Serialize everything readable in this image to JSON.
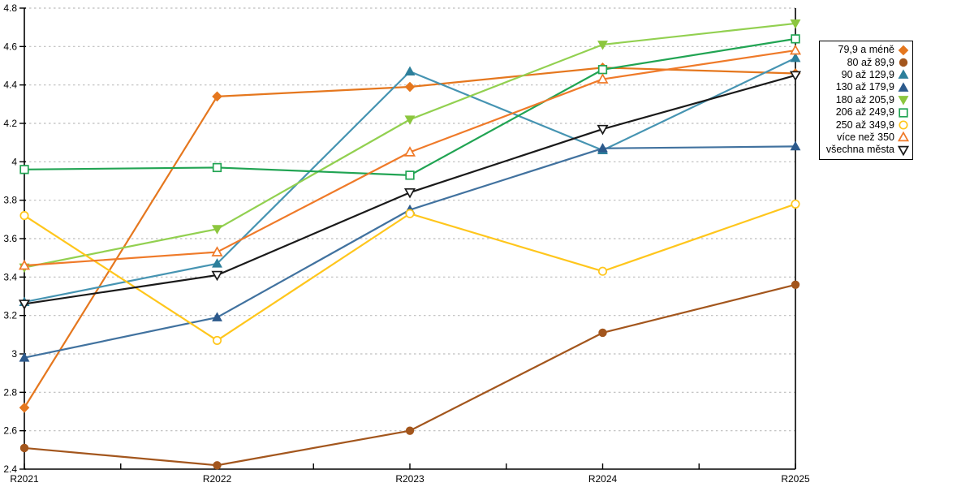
{
  "chart_data": {
    "type": "line",
    "title": "",
    "xlabel": "",
    "ylabel": "",
    "categories": [
      "R2021",
      "R2022",
      "R2023",
      "R2024",
      "R2025"
    ],
    "ylim": [
      2.4,
      4.8
    ],
    "ytick_step": 0.2,
    "ytick_labels": [
      "2.4",
      "2.6",
      "2.8",
      "3",
      "3.2",
      "3.4",
      "3.6",
      "3.8",
      "4",
      "4.2",
      "4.4",
      "4.6",
      "4.8"
    ],
    "grid": "horizontal-dashed",
    "legend_position": "right",
    "series": [
      {
        "name": "79,9 a méně",
        "marker": "diamond",
        "color": "#e5771e",
        "marker_color": "#e5771e",
        "values": [
          2.72,
          4.34,
          4.39,
          4.49,
          4.46
        ]
      },
      {
        "name": "80 až 89,9",
        "marker": "circle",
        "color": "#a3561d",
        "marker_color": "#a3561d",
        "values": [
          2.51,
          2.42,
          2.6,
          3.11,
          3.36
        ]
      },
      {
        "name": "90 až 129,9",
        "marker": "triangle-up",
        "color": "#4694b2",
        "marker_color": "#2d7f9b",
        "values": [
          3.27,
          3.47,
          4.47,
          4.06,
          4.54
        ]
      },
      {
        "name": "130 až 179,9",
        "marker": "triangle-up",
        "color": "#41729f",
        "marker_color": "#2d5a8c",
        "values": [
          2.98,
          3.19,
          3.75,
          4.07,
          4.08
        ]
      },
      {
        "name": "180 až 205,9",
        "marker": "triangle-down",
        "color": "#92d050",
        "marker_color": "#8cc63e",
        "values": [
          3.45,
          3.65,
          4.22,
          4.61,
          4.72
        ]
      },
      {
        "name": "206 až 249,9",
        "marker": "square-open",
        "color": "#21a453",
        "marker_color": "#21a453",
        "values": [
          3.96,
          3.97,
          3.93,
          4.48,
          4.64
        ]
      },
      {
        "name": "250 až 349,9",
        "marker": "circle-open",
        "color": "#ffc61c",
        "marker_color": "#ffc61c",
        "values": [
          3.72,
          3.07,
          3.73,
          3.43,
          3.78
        ]
      },
      {
        "name": "více než 350",
        "marker": "triangle-up-open",
        "color": "#ef7a29",
        "marker_color": "#ef7a29",
        "values": [
          3.46,
          3.53,
          4.05,
          4.43,
          4.58
        ]
      },
      {
        "name": "všechna města",
        "marker": "triangle-down-open",
        "color": "#1a1a1a",
        "marker_color": "#1a1a1a",
        "values": [
          3.26,
          3.41,
          3.84,
          4.17,
          4.45
        ]
      }
    ]
  },
  "colors": {
    "background": "#ffffff",
    "grid": "#bdbdbd",
    "axis": "#000000",
    "text": "#000000",
    "legend_border": "#000000"
  }
}
